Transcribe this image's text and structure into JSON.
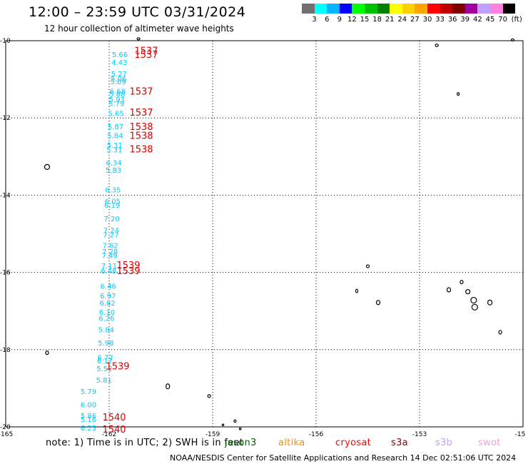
{
  "header": {
    "title": "12:00 – 23:59 UTC 03/31/2024",
    "subtitle": "12 hour collection of altimeter wave heights"
  },
  "legend": {
    "unit": "(ft)",
    "colors": [
      "#707070",
      "#00ffff",
      "#00b4ff",
      "#0000ff",
      "#00ff00",
      "#00c000",
      "#008000",
      "#ffff00",
      "#ffd000",
      "#ffa500",
      "#ff0000",
      "#c00000",
      "#800000",
      "#a000a0",
      "#c0a0ff",
      "#ff80e0",
      "#000000"
    ],
    "labels": [
      "3",
      "6",
      "9",
      "12",
      "15",
      "18",
      "21",
      "24",
      "27",
      "30",
      "33",
      "36",
      "39",
      "42",
      "45",
      "70"
    ]
  },
  "axes": {
    "lat_labels": [
      "-10",
      "-12",
      "-14",
      "-16",
      "-18",
      "-20"
    ],
    "lon_labels": [
      "-165",
      "-162",
      "-159",
      "-156",
      "-153",
      "-15"
    ]
  },
  "swh_points": [
    {
      "lat": -10.35,
      "label": "5.66"
    },
    {
      "lat": -10.55,
      "label": "4.43"
    },
    {
      "lat": -10.85,
      "label": "5.27"
    },
    {
      "lat": -10.98,
      "label": "5.06"
    },
    {
      "lat": -11.05,
      "label": "5.09"
    },
    {
      "lat": -11.3,
      "label": "6.68"
    },
    {
      "lat": -11.38,
      "label": "5.88"
    },
    {
      "lat": -11.52,
      "label": "5.93"
    },
    {
      "lat": -11.62,
      "label": "5.79"
    },
    {
      "lat": -11.88,
      "label": "5.65"
    },
    {
      "lat": -12.22,
      "label": "5.87"
    },
    {
      "lat": -12.45,
      "label": "5.84"
    },
    {
      "lat": -12.7,
      "label": "5.31"
    },
    {
      "lat": -12.82,
      "label": "5.31"
    },
    {
      "lat": -13.15,
      "label": "6.34"
    },
    {
      "lat": -13.35,
      "label": "5.83"
    },
    {
      "lat": -13.85,
      "label": "6.35"
    },
    {
      "lat": -14.15,
      "label": "6.05"
    },
    {
      "lat": -14.25,
      "label": "6.19"
    },
    {
      "lat": -14.6,
      "label": "7.20"
    },
    {
      "lat": -14.9,
      "label": "7.24"
    },
    {
      "lat": -15.02,
      "label": "7.27"
    },
    {
      "lat": -15.3,
      "label": "7.62"
    },
    {
      "lat": -15.45,
      "label": "7.28"
    },
    {
      "lat": -15.55,
      "label": "7.49"
    },
    {
      "lat": -15.82,
      "label": "7.11"
    },
    {
      "lat": -15.95,
      "label": "6.48"
    },
    {
      "lat": -16.35,
      "label": "6.46"
    },
    {
      "lat": -16.6,
      "label": "6.97"
    },
    {
      "lat": -16.78,
      "label": "6.82"
    },
    {
      "lat": -17.02,
      "label": "6.10"
    },
    {
      "lat": -17.18,
      "label": "6.26"
    },
    {
      "lat": -17.48,
      "label": "5.84"
    },
    {
      "lat": -17.82,
      "label": "5.98"
    },
    {
      "lat": -18.2,
      "label": "6.77"
    },
    {
      "lat": -18.28,
      "label": "6.17"
    },
    {
      "lat": -18.48,
      "label": "5.52"
    },
    {
      "lat": -18.78,
      "label": "5.81"
    }
  ],
  "swh_points_low": [
    {
      "lat": -19.08,
      "label": "5.79"
    },
    {
      "lat": -19.42,
      "label": "6.00"
    },
    {
      "lat": -19.7,
      "label": "5.86"
    },
    {
      "lat": -19.8,
      "label": "5.16"
    },
    {
      "lat": -20.02,
      "label": "6.25"
    }
  ],
  "time_labels": [
    {
      "lat": -10.25,
      "label": "1537"
    },
    {
      "lat": -10.35,
      "label": "1537"
    },
    {
      "lat": -11.3,
      "label": "1537"
    },
    {
      "lat": -11.85,
      "label": "1537"
    },
    {
      "lat": -12.22,
      "label": "1538"
    },
    {
      "lat": -12.45,
      "label": "1538"
    },
    {
      "lat": -12.8,
      "label": "1538"
    },
    {
      "lat": -15.8,
      "label": "1539"
    },
    {
      "lat": -15.95,
      "label": "1539"
    },
    {
      "lat": -18.42,
      "label": "1539"
    },
    {
      "lat": -19.74,
      "label": "1540"
    },
    {
      "lat": -20.06,
      "label": "1540"
    }
  ],
  "footer": {
    "note": "note:  1) Time is in UTC; 2) SWH is in feet",
    "missions": [
      {
        "name": "jason3",
        "color": "#006400"
      },
      {
        "name": "altika",
        "color": "#ff8c00"
      },
      {
        "name": "cryosat",
        "color": "#ff0000"
      },
      {
        "name": "s3a",
        "color": "#8b0000"
      },
      {
        "name": "s3b",
        "color": "#c8a0e8"
      },
      {
        "name": "swot",
        "color": "#ff99dd"
      }
    ],
    "credit": "NOAA/NESDIS Center for Satellite Applications and Research    14 Dec 02:51:06 UTC 2024"
  },
  "colors": {
    "swh": "#00ccff",
    "time": "#dd0000",
    "island": "#000000",
    "grid": "#000000"
  }
}
